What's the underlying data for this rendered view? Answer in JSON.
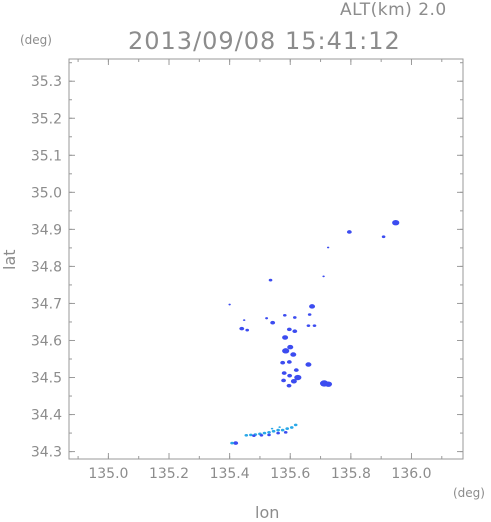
{
  "header": {
    "altitude": "ALT(km) 2.0",
    "datetime": "2013/09/08 15:41:12"
  },
  "axes": {
    "y_unit": "(deg)",
    "x_unit": "(deg)",
    "x_label": "lon",
    "y_label": "lat"
  },
  "chart_data": {
    "type": "scatter",
    "xlabel": "lon",
    "ylabel": "lat",
    "xlim": [
      134.87,
      136.17
    ],
    "ylim": [
      34.28,
      35.36
    ],
    "x_ticks": [
      "135.0",
      "135.2",
      "135.4",
      "135.6",
      "135.8",
      "136.0"
    ],
    "x_tick_values": [
      135.0,
      135.2,
      135.4,
      135.6,
      135.8,
      136.0
    ],
    "y_ticks": [
      "34.3",
      "34.4",
      "34.5",
      "34.6",
      "34.7",
      "34.8",
      "34.9",
      "35.0",
      "35.1",
      "35.2",
      "35.3"
    ],
    "y_tick_values": [
      34.3,
      34.4,
      34.5,
      34.6,
      34.7,
      34.8,
      34.9,
      35.0,
      35.1,
      35.2,
      35.3
    ],
    "colors": {
      "dark": "#3c4cf0",
      "light": "#2aa8e8",
      "axis": "#9a9a9a",
      "text": "#8c8c8c"
    },
    "points": [
      {
        "lon": 135.948,
        "lat": 34.918,
        "c": "dark",
        "s": 3
      },
      {
        "lon": 135.795,
        "lat": 34.893,
        "c": "dark",
        "s": 2
      },
      {
        "lon": 135.908,
        "lat": 34.88,
        "c": "dark",
        "s": 1.5
      },
      {
        "lon": 135.725,
        "lat": 34.851,
        "c": "dark",
        "s": 1
      },
      {
        "lon": 135.71,
        "lat": 34.773,
        "c": "dark",
        "s": 1
      },
      {
        "lon": 135.535,
        "lat": 34.763,
        "c": "dark",
        "s": 1.5
      },
      {
        "lon": 135.4,
        "lat": 34.697,
        "c": "dark",
        "s": 1
      },
      {
        "lon": 135.672,
        "lat": 34.692,
        "c": "dark",
        "s": 2.5
      },
      {
        "lon": 135.664,
        "lat": 34.67,
        "c": "dark",
        "s": 1.5
      },
      {
        "lon": 135.582,
        "lat": 34.668,
        "c": "dark",
        "s": 1.5
      },
      {
        "lon": 135.615,
        "lat": 34.662,
        "c": "dark",
        "s": 1.5
      },
      {
        "lon": 135.522,
        "lat": 34.66,
        "c": "dark",
        "s": 1.2
      },
      {
        "lon": 135.542,
        "lat": 34.648,
        "c": "dark",
        "s": 2
      },
      {
        "lon": 135.448,
        "lat": 34.655,
        "c": "dark",
        "s": 1
      },
      {
        "lon": 135.44,
        "lat": 34.632,
        "c": "dark",
        "s": 2
      },
      {
        "lon": 135.458,
        "lat": 34.628,
        "c": "dark",
        "s": 1.5
      },
      {
        "lon": 135.597,
        "lat": 34.63,
        "c": "dark",
        "s": 2
      },
      {
        "lon": 135.615,
        "lat": 34.625,
        "c": "dark",
        "s": 2
      },
      {
        "lon": 135.66,
        "lat": 34.64,
        "c": "dark",
        "s": 1.5
      },
      {
        "lon": 135.68,
        "lat": 34.64,
        "c": "dark",
        "s": 1.5
      },
      {
        "lon": 135.583,
        "lat": 34.608,
        "c": "dark",
        "s": 2.5
      },
      {
        "lon": 135.6,
        "lat": 34.582,
        "c": "dark",
        "s": 2.5
      },
      {
        "lon": 135.585,
        "lat": 34.572,
        "c": "dark",
        "s": 3
      },
      {
        "lon": 135.61,
        "lat": 34.562,
        "c": "dark",
        "s": 2.5
      },
      {
        "lon": 135.597,
        "lat": 34.542,
        "c": "dark",
        "s": 2
      },
      {
        "lon": 135.575,
        "lat": 34.54,
        "c": "dark",
        "s": 2
      },
      {
        "lon": 135.66,
        "lat": 34.535,
        "c": "dark",
        "s": 2.5
      },
      {
        "lon": 135.62,
        "lat": 34.52,
        "c": "dark",
        "s": 2
      },
      {
        "lon": 135.58,
        "lat": 34.512,
        "c": "dark",
        "s": 2
      },
      {
        "lon": 135.598,
        "lat": 34.505,
        "c": "dark",
        "s": 2
      },
      {
        "lon": 135.625,
        "lat": 34.5,
        "c": "dark",
        "s": 3
      },
      {
        "lon": 135.612,
        "lat": 34.49,
        "c": "dark",
        "s": 2.5
      },
      {
        "lon": 135.578,
        "lat": 34.492,
        "c": "dark",
        "s": 2
      },
      {
        "lon": 135.596,
        "lat": 34.478,
        "c": "dark",
        "s": 2
      },
      {
        "lon": 135.712,
        "lat": 34.484,
        "c": "dark",
        "s": 3.5
      },
      {
        "lon": 135.726,
        "lat": 34.482,
        "c": "dark",
        "s": 3
      },
      {
        "lon": 135.618,
        "lat": 34.372,
        "c": "light",
        "s": 1.5
      },
      {
        "lon": 135.605,
        "lat": 34.365,
        "c": "light",
        "s": 1.5
      },
      {
        "lon": 135.59,
        "lat": 34.362,
        "c": "light",
        "s": 1.5
      },
      {
        "lon": 135.575,
        "lat": 34.358,
        "c": "light",
        "s": 1.5
      },
      {
        "lon": 135.56,
        "lat": 34.358,
        "c": "light",
        "s": 1.5
      },
      {
        "lon": 135.545,
        "lat": 34.355,
        "c": "light",
        "s": 1.5
      },
      {
        "lon": 135.53,
        "lat": 34.352,
        "c": "light",
        "s": 1.5
      },
      {
        "lon": 135.515,
        "lat": 34.35,
        "c": "light",
        "s": 1.5
      },
      {
        "lon": 135.5,
        "lat": 34.348,
        "c": "light",
        "s": 1.5
      },
      {
        "lon": 135.485,
        "lat": 34.346,
        "c": "light",
        "s": 1.5
      },
      {
        "lon": 135.47,
        "lat": 34.345,
        "c": "light",
        "s": 1.5
      },
      {
        "lon": 135.455,
        "lat": 34.344,
        "c": "light",
        "s": 1.5
      },
      {
        "lon": 135.54,
        "lat": 34.362,
        "c": "light",
        "s": 1
      },
      {
        "lon": 135.565,
        "lat": 34.366,
        "c": "light",
        "s": 1
      },
      {
        "lon": 135.585,
        "lat": 34.352,
        "c": "dark",
        "s": 1.5
      },
      {
        "lon": 135.56,
        "lat": 34.35,
        "c": "dark",
        "s": 1.5
      },
      {
        "lon": 135.53,
        "lat": 34.345,
        "c": "dark",
        "s": 1.5
      },
      {
        "lon": 135.505,
        "lat": 34.344,
        "c": "dark",
        "s": 1.5
      },
      {
        "lon": 135.48,
        "lat": 34.343,
        "c": "dark",
        "s": 1.5
      },
      {
        "lon": 135.42,
        "lat": 34.323,
        "c": "dark",
        "s": 2
      },
      {
        "lon": 135.408,
        "lat": 34.323,
        "c": "light",
        "s": 1.5
      }
    ]
  }
}
